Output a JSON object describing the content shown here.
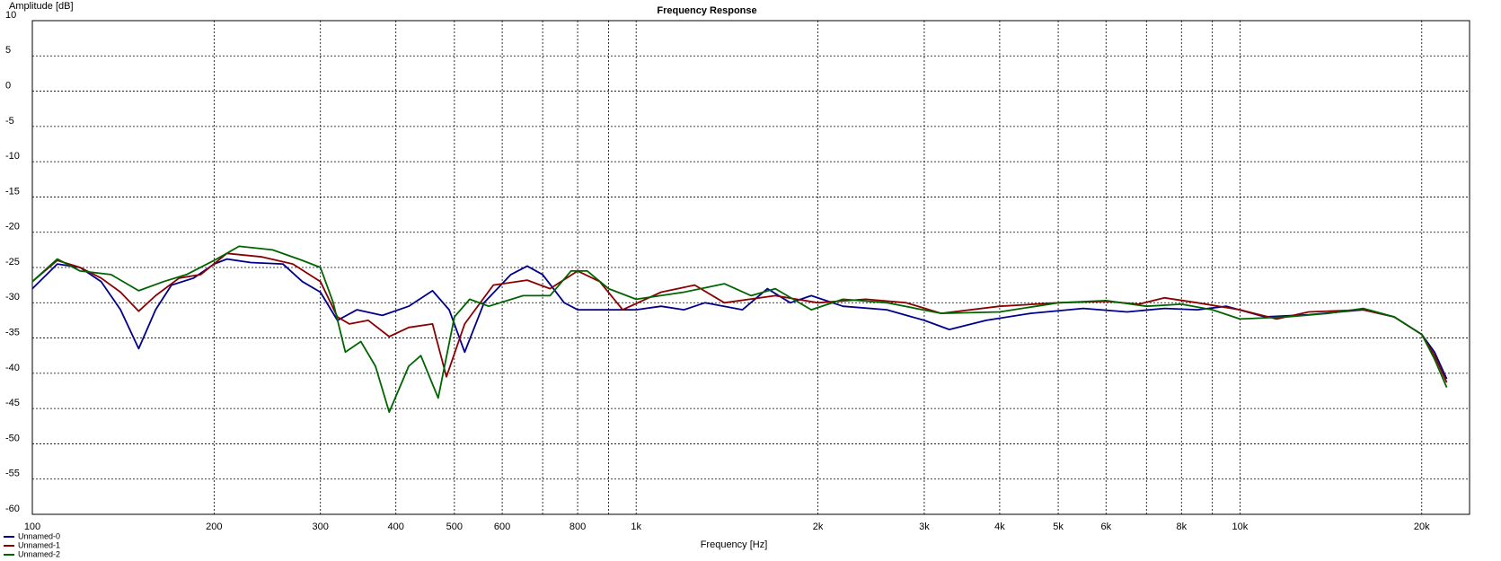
{
  "chart_data": {
    "type": "line",
    "title": "Frequency Response",
    "x_label": "Frequency [Hz]",
    "y_label": "Amplitude [dB]",
    "log_x": true,
    "grid": true,
    "legend": "bottom-left",
    "xlim": [
      100,
      24000
    ],
    "ylim": [
      -60,
      10
    ],
    "yticks": [
      -60,
      -55,
      -50,
      -45,
      -40,
      -35,
      -30,
      -25,
      -20,
      -15,
      -10,
      -5,
      0,
      5,
      10
    ],
    "xticks": [
      100,
      200,
      300,
      400,
      500,
      600,
      {
        "value": 700,
        "label": null
      },
      800,
      {
        "value": 900,
        "label": null
      },
      {
        "value": 1000,
        "label": "1k"
      },
      {
        "value": 2000,
        "label": "2k"
      },
      {
        "value": 3000,
        "label": "3k"
      },
      {
        "value": 4000,
        "label": "4k"
      },
      {
        "value": 5000,
        "label": "5k"
      },
      {
        "value": 6000,
        "label": "6k"
      },
      {
        "value": 7000,
        "label": null
      },
      {
        "value": 8000,
        "label": "8k"
      },
      {
        "value": 9000,
        "label": null
      },
      {
        "value": 10000,
        "label": "10k"
      },
      {
        "value": 20000,
        "label": "20k"
      }
    ],
    "series": [
      {
        "name": "Unnamed-0",
        "color": "#00008b",
        "x": [
          100,
          110,
          120,
          130,
          140,
          150,
          160,
          170,
          185,
          200,
          210,
          230,
          260,
          280,
          300,
          320,
          345,
          380,
          420,
          460,
          490,
          520,
          560,
          620,
          660,
          700,
          760,
          800,
          900,
          1000,
          1100,
          1200,
          1300,
          1500,
          1650,
          1800,
          1950,
          2200,
          2600,
          3000,
          3300,
          3800,
          4500,
          5500,
          6500,
          7500,
          8500,
          9500,
          11000,
          13000,
          16000,
          18000,
          20000,
          21000,
          22000
        ],
        "values": [
          -28,
          -24.5,
          -25,
          -27,
          -31,
          -36.5,
          -31,
          -27.5,
          -26.5,
          -24.5,
          -23.8,
          -24.3,
          -24.5,
          -27,
          -28.5,
          -32.5,
          -31,
          -31.8,
          -30.5,
          -28.3,
          -31,
          -37,
          -30,
          -26,
          -24.8,
          -26,
          -30,
          -31,
          -31,
          -31,
          -30.5,
          -31,
          -30,
          -31,
          -28,
          -30,
          -29,
          -30.5,
          -31,
          -32.5,
          -33.8,
          -32.5,
          -31.5,
          -30.8,
          -31.3,
          -30.8,
          -31,
          -30.5,
          -32,
          -31.7,
          -31,
          -32,
          -34.5,
          -37,
          -40.8
        ]
      },
      {
        "name": "Unnamed-1",
        "color": "#8b0000",
        "x": [
          100,
          110,
          120,
          130,
          140,
          150,
          160,
          175,
          190,
          210,
          240,
          270,
          300,
          320,
          335,
          360,
          390,
          420,
          460,
          485,
          520,
          580,
          660,
          720,
          800,
          870,
          950,
          1100,
          1250,
          1400,
          1700,
          2000,
          2400,
          2800,
          3200,
          4000,
          5000,
          6000,
          6800,
          7500,
          8500,
          10000,
          11500,
          13000,
          16000,
          18000,
          20000,
          21000,
          22000
        ],
        "values": [
          -27,
          -24,
          -25,
          -26.5,
          -28.5,
          -31.2,
          -29,
          -26.5,
          -26,
          -23,
          -23.5,
          -24.5,
          -27,
          -32,
          -33,
          -32.5,
          -34.8,
          -33.5,
          -33,
          -40.5,
          -33,
          -27.5,
          -26.8,
          -28,
          -25.5,
          -27,
          -31,
          -28.5,
          -27.5,
          -30,
          -29,
          -30,
          -29.5,
          -30,
          -31.5,
          -30.5,
          -30,
          -29.8,
          -30.2,
          -29.3,
          -30,
          -31,
          -32.3,
          -31.3,
          -31,
          -32,
          -34.5,
          -37.5,
          -41.3
        ]
      },
      {
        "name": "Unnamed-2",
        "color": "#006400",
        "x": [
          100,
          110,
          120,
          135,
          150,
          165,
          180,
          200,
          220,
          250,
          280,
          300,
          315,
          330,
          350,
          370,
          390,
          420,
          440,
          470,
          500,
          530,
          570,
          650,
          720,
          780,
          830,
          900,
          1000,
          1200,
          1400,
          1550,
          1700,
          1950,
          2200,
          2600,
          3200,
          4000,
          5000,
          6000,
          7000,
          8000,
          9000,
          10000,
          12000,
          14000,
          16000,
          18000,
          20000,
          21000,
          22000
        ],
        "values": [
          -27,
          -23.8,
          -25.5,
          -26,
          -28.3,
          -27,
          -26,
          -24,
          -22,
          -22.5,
          -24,
          -25,
          -30,
          -37,
          -35.5,
          -39,
          -45.5,
          -39,
          -37.5,
          -43.5,
          -32,
          -29.5,
          -30.5,
          -29,
          -29,
          -25.5,
          -25.5,
          -28,
          -29.5,
          -28.5,
          -27.3,
          -29,
          -28,
          -31,
          -29.5,
          -30,
          -31.5,
          -31.3,
          -30,
          -29.7,
          -30.5,
          -30.2,
          -31,
          -32.3,
          -32,
          -31.5,
          -30.8,
          -32,
          -34.5,
          -38,
          -42
        ]
      }
    ]
  }
}
